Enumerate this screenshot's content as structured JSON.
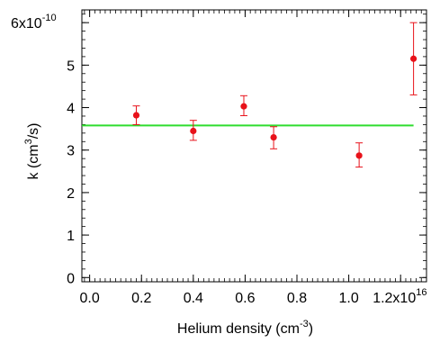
{
  "chart_data": {
    "type": "scatter",
    "xlabel": "Helium density (cm",
    "xlabel_sup": "-3",
    "xlabel_tail": ")",
    "ylabel": "k (cm",
    "ylabel_sup": "3",
    "ylabel_tail": "/s)",
    "x_multiplier": {
      "mantissa": "1.2x10",
      "exp": "16"
    },
    "y_multiplier": {
      "mantissa": "6x10",
      "exp": "-10"
    },
    "xlim": [
      -0.03,
      1.3
    ],
    "ylim": [
      -0.1,
      6.3
    ],
    "x_ticks": [
      {
        "value": 0.0,
        "label": "0.0"
      },
      {
        "value": 0.2,
        "label": "0.2"
      },
      {
        "value": 0.4,
        "label": "0.4"
      },
      {
        "value": 0.6,
        "label": "0.6"
      },
      {
        "value": 0.8,
        "label": "0.8"
      },
      {
        "value": 1.0,
        "label": "1.0"
      }
    ],
    "x_multiplier_tick": 1.2,
    "y_ticks": [
      {
        "value": 0,
        "label": "0"
      },
      {
        "value": 1,
        "label": "1"
      },
      {
        "value": 2,
        "label": "2"
      },
      {
        "value": 3,
        "label": "3"
      },
      {
        "value": 4,
        "label": "4"
      },
      {
        "value": 5,
        "label": "5"
      }
    ],
    "y_multiplier_tick": 6,
    "x_minor_step": 0.02,
    "y_minor_step": 0.2,
    "points": [
      {
        "x": 0.18,
        "y": 3.82,
        "err_low": 0.22,
        "err_high": 0.22
      },
      {
        "x": 0.4,
        "y": 3.45,
        "err_low": 0.22,
        "err_high": 0.25
      },
      {
        "x": 0.595,
        "y": 4.03,
        "err_low": 0.22,
        "err_high": 0.25
      },
      {
        "x": 0.71,
        "y": 3.3,
        "err_low": 0.27,
        "err_high": 0.25
      },
      {
        "x": 1.04,
        "y": 2.87,
        "err_low": 0.27,
        "err_high": 0.3
      },
      {
        "x": 1.25,
        "y": 5.15,
        "err_low": 0.85,
        "err_high": 0.85
      }
    ],
    "fit_line": {
      "y": 3.58,
      "x_start": -0.03,
      "x_end": 1.25
    },
    "marker_color": "#e8121a",
    "fit_color": "#2fdc2f",
    "grid": false,
    "legend": "none"
  }
}
